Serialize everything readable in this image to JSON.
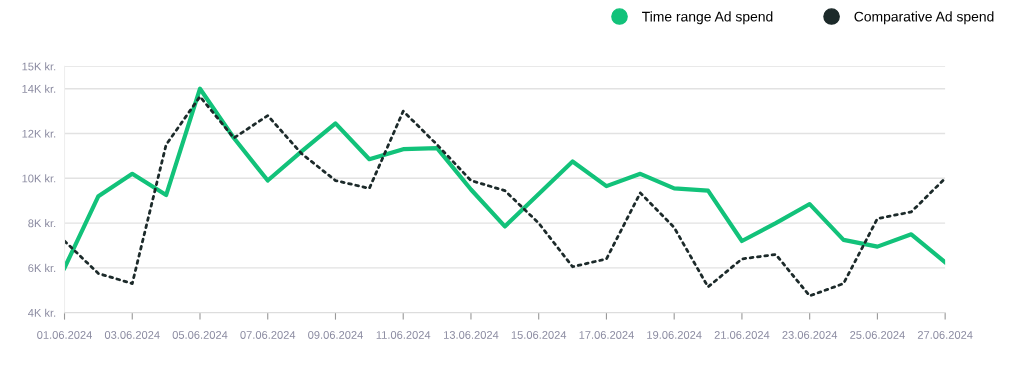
{
  "chart_data": {
    "type": "line",
    "x": [
      "2024-06-01",
      "2024-06-02",
      "2024-06-03",
      "2024-06-04",
      "2024-06-05",
      "2024-06-06",
      "2024-06-07",
      "2024-06-08",
      "2024-06-09",
      "2024-06-10",
      "2024-06-11",
      "2024-06-12",
      "2024-06-13",
      "2024-06-14",
      "2024-06-15",
      "2024-06-16",
      "2024-06-17",
      "2024-06-18",
      "2024-06-19",
      "2024-06-20",
      "2024-06-21",
      "2024-06-22",
      "2024-06-23",
      "2024-06-24",
      "2024-06-25",
      "2024-06-26",
      "2024-06-27"
    ],
    "series": [
      {
        "name": "Time range Ad spend",
        "color": "#12c27a",
        "line_style": "solid",
        "values": [
          6000,
          9200,
          10200,
          9250,
          14000,
          11800,
          9900,
          11200,
          12450,
          10850,
          11300,
          11350,
          9500,
          7850,
          9300,
          10750,
          9650,
          10200,
          9550,
          9450,
          7200,
          8000,
          8850,
          7250,
          6950,
          7500,
          6250
        ]
      },
      {
        "name": "Comparative Ad spend",
        "color": "#1c2a2a",
        "line_style": "dotted",
        "values": [
          7200,
          5750,
          5300,
          11500,
          13650,
          11800,
          12800,
          11100,
          9900,
          9550,
          13000,
          11500,
          9900,
          9450,
          8000,
          6050,
          6400,
          9350,
          7800,
          5150,
          6400,
          6600,
          4750,
          5300,
          8200,
          8500,
          10000
        ]
      }
    ],
    "xlim": [
      "2024-06-01",
      "2024-06-27"
    ],
    "xticks": [
      {
        "value": "2024-06-01",
        "label": "01.06.2024"
      },
      {
        "value": "2024-06-03",
        "label": "03.06.2024"
      },
      {
        "value": "2024-06-05",
        "label": "05.06.2024"
      },
      {
        "value": "2024-06-07",
        "label": "07.06.2024"
      },
      {
        "value": "2024-06-09",
        "label": "09.06.2024"
      },
      {
        "value": "2024-06-11",
        "label": "11.06.2024"
      },
      {
        "value": "2024-06-13",
        "label": "13.06.2024"
      },
      {
        "value": "2024-06-15",
        "label": "15.06.2024"
      },
      {
        "value": "2024-06-17",
        "label": "17.06.2024"
      },
      {
        "value": "2024-06-19",
        "label": "19.06.2024"
      },
      {
        "value": "2024-06-21",
        "label": "21.06.2024"
      },
      {
        "value": "2024-06-23",
        "label": "23.06.2024"
      },
      {
        "value": "2024-06-25",
        "label": "25.06.2024"
      },
      {
        "value": "2024-06-27",
        "label": "27.06.2024"
      }
    ],
    "ylim": [
      4000,
      15000
    ],
    "yticks": [
      {
        "value": 4000,
        "label": "4K kr."
      },
      {
        "value": 6000,
        "label": "6K kr."
      },
      {
        "value": 8000,
        "label": "8K kr."
      },
      {
        "value": 10000,
        "label": "10K kr."
      },
      {
        "value": 12000,
        "label": "12K kr."
      },
      {
        "value": 14000,
        "label": "14K kr."
      },
      {
        "value": 15000,
        "label": "15K kr."
      }
    ],
    "grid": "y",
    "legend": "top right",
    "marker": "none"
  }
}
